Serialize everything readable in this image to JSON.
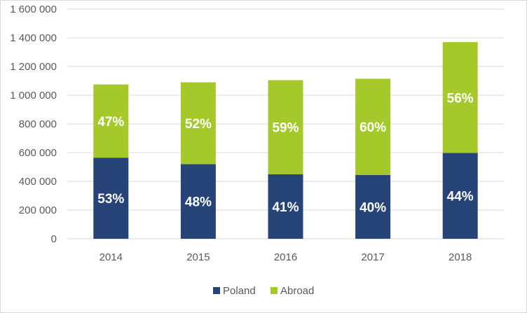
{
  "chart_data": {
    "type": "bar",
    "stacked": true,
    "title": "",
    "xlabel": "",
    "ylabel": "",
    "categories": [
      "2014",
      "2015",
      "2016",
      "2017",
      "2018"
    ],
    "series": [
      {
        "name": "Poland",
        "color": "#264478",
        "values": [
          565000,
          520000,
          450000,
          445000,
          598000
        ],
        "labels": [
          "53%",
          "48%",
          "41%",
          "40%",
          "44%"
        ]
      },
      {
        "name": "Abroad",
        "color": "#a5c92b",
        "values": [
          510000,
          570000,
          655000,
          670000,
          772000
        ],
        "labels": [
          "47%",
          "52%",
          "59%",
          "60%",
          "56%"
        ]
      }
    ],
    "yticks": [
      "0",
      "200 000",
      "400 000",
      "600 000",
      "800 000",
      "1 000 000",
      "1 200 000",
      "1 400 000",
      "1 600 000"
    ],
    "ylim": [
      0,
      1600000
    ],
    "grid": true,
    "legend_position": "bottom"
  }
}
